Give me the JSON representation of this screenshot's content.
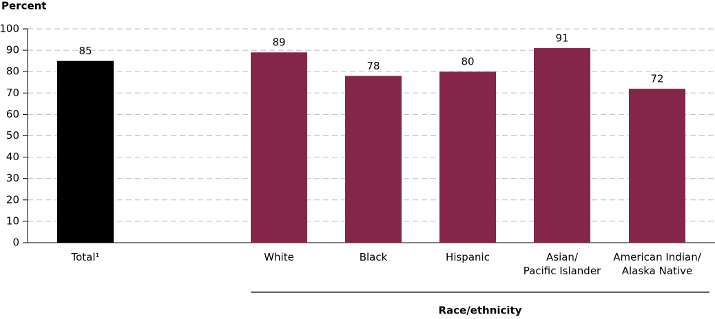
{
  "chart_data": {
    "type": "bar",
    "y_axis_label": "Percent",
    "group_label": "Race/ethnicity",
    "categories": [
      "Total¹",
      "White",
      "Black",
      "Hispanic",
      "Asian/\nPacific Islander",
      "American Indian/\nAlaska Native"
    ],
    "values": [
      85,
      89,
      78,
      80,
      91,
      72
    ],
    "colors": [
      "#000000",
      "#84264a",
      "#84264a",
      "#84264a",
      "#84264a",
      "#84264a"
    ],
    "ylim": [
      0,
      100
    ],
    "yticks": [
      0,
      10,
      20,
      30,
      40,
      50,
      60,
      70,
      80,
      90,
      100
    ],
    "grid": true
  }
}
